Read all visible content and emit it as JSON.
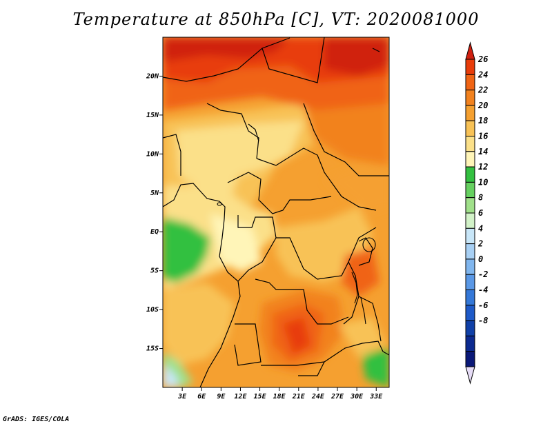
{
  "title": "Temperature at 850hPa [C], VT: 2020081000",
  "footer": "GrADS: IGES/COLA",
  "map": {
    "variable": "Temperature at 850hPa",
    "units": "C",
    "valid_time": "2020081000",
    "lon_range": [
      0,
      35
    ],
    "lat_range": [
      -20,
      25
    ],
    "lat_ticks": [
      {
        "value": 20,
        "label": "20N"
      },
      {
        "value": 15,
        "label": "15N"
      },
      {
        "value": 10,
        "label": "10N"
      },
      {
        "value": 5,
        "label": "5N"
      },
      {
        "value": 0,
        "label": "EQ"
      },
      {
        "value": -5,
        "label": "5S"
      },
      {
        "value": -10,
        "label": "10S"
      },
      {
        "value": -15,
        "label": "15S"
      }
    ],
    "lon_ticks": [
      {
        "value": 3,
        "label": "3E"
      },
      {
        "value": 6,
        "label": "6E"
      },
      {
        "value": 9,
        "label": "9E"
      },
      {
        "value": 12,
        "label": "12E"
      },
      {
        "value": 15,
        "label": "15E"
      },
      {
        "value": 18,
        "label": "18E"
      },
      {
        "value": 21,
        "label": "21E"
      },
      {
        "value": 24,
        "label": "24E"
      },
      {
        "value": 27,
        "label": "27E"
      },
      {
        "value": 30,
        "label": "30E"
      },
      {
        "value": 33,
        "label": "33E"
      }
    ]
  },
  "colorbar": {
    "levels": [
      26,
      24,
      22,
      20,
      18,
      16,
      14,
      12,
      10,
      8,
      6,
      4,
      2,
      0,
      -2,
      -4,
      -6,
      -8
    ],
    "labels": [
      "26",
      "24",
      "22",
      "20",
      "18",
      "16",
      "14",
      "12",
      "10",
      "8",
      "6",
      "4",
      "2",
      "0",
      "-2",
      "-4",
      "-6",
      "-8"
    ],
    "colors": [
      "#d02010",
      "#e83c0a",
      "#f06414",
      "#f2821e",
      "#f5a030",
      "#f8c256",
      "#fbe089",
      "#fff5b8",
      "#33c040",
      "#66d060",
      "#a0e08a",
      "#d2f2c8",
      "#c8e6f8",
      "#a8d0f4",
      "#80b6ee",
      "#5a98e6",
      "#3478d8",
      "#1e5ac8",
      "#1040a8",
      "#0c2a90",
      "#0a1878",
      "#e6dcf6"
    ]
  }
}
